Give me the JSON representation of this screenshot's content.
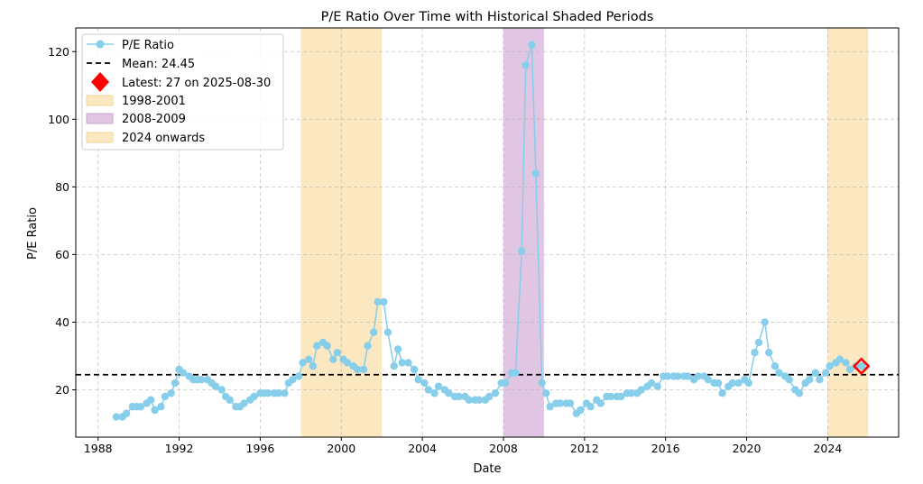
{
  "chart_data": {
    "type": "line",
    "title": "P/E Ratio Over Time with Historical Shaded Periods",
    "xlabel": "Date",
    "ylabel": "P/E Ratio",
    "xlim": [
      1986.9,
      2027.5
    ],
    "ylim": [
      6,
      127
    ],
    "x_ticks": [
      1988,
      1992,
      1996,
      2000,
      2004,
      2008,
      2012,
      2016,
      2020,
      2024
    ],
    "y_ticks": [
      20,
      40,
      60,
      80,
      100,
      120
    ],
    "grid": true,
    "legend_position": "top-left",
    "colors": {
      "line": "#87ceeb",
      "mean": "#000000",
      "latest": "#ff0000",
      "shade_1998": "#fce8c0",
      "shade_2008": "#e0c6e2",
      "shade_2024": "#fce8c0"
    },
    "series": [
      {
        "name": "P/E Ratio",
        "points": [
          [
            1988.9,
            12
          ],
          [
            1989.2,
            12
          ],
          [
            1989.4,
            13
          ],
          [
            1989.7,
            15
          ],
          [
            1989.9,
            15
          ],
          [
            1990.1,
            15
          ],
          [
            1990.4,
            16
          ],
          [
            1990.6,
            17
          ],
          [
            1990.8,
            14
          ],
          [
            1991.1,
            15
          ],
          [
            1991.3,
            18
          ],
          [
            1991.6,
            19
          ],
          [
            1991.8,
            22
          ],
          [
            1992.0,
            26
          ],
          [
            1992.2,
            25
          ],
          [
            1992.5,
            24
          ],
          [
            1992.7,
            23
          ],
          [
            1992.9,
            23
          ],
          [
            1993.1,
            23
          ],
          [
            1993.4,
            23
          ],
          [
            1993.6,
            22
          ],
          [
            1993.8,
            21
          ],
          [
            1994.1,
            20
          ],
          [
            1994.3,
            18
          ],
          [
            1994.5,
            17
          ],
          [
            1994.8,
            15
          ],
          [
            1995.0,
            15
          ],
          [
            1995.2,
            16
          ],
          [
            1995.5,
            17
          ],
          [
            1995.7,
            18
          ],
          [
            1996.0,
            19
          ],
          [
            1996.2,
            19
          ],
          [
            1996.4,
            19
          ],
          [
            1996.7,
            19
          ],
          [
            1996.9,
            19
          ],
          [
            1997.2,
            19
          ],
          [
            1997.4,
            22
          ],
          [
            1997.6,
            23
          ],
          [
            1997.9,
            24
          ],
          [
            1998.1,
            28
          ],
          [
            1998.4,
            29
          ],
          [
            1998.6,
            27
          ],
          [
            1998.8,
            33
          ],
          [
            1999.1,
            34
          ],
          [
            1999.3,
            33
          ],
          [
            1999.6,
            29
          ],
          [
            1999.8,
            31
          ],
          [
            2000.1,
            29
          ],
          [
            2000.3,
            28
          ],
          [
            2000.6,
            27
          ],
          [
            2000.8,
            26
          ],
          [
            2001.1,
            26
          ],
          [
            2001.3,
            33
          ],
          [
            2001.6,
            37
          ],
          [
            2001.8,
            46
          ],
          [
            2002.1,
            46
          ],
          [
            2002.3,
            37
          ],
          [
            2002.6,
            27
          ],
          [
            2002.8,
            32
          ],
          [
            2003.0,
            28
          ],
          [
            2003.3,
            28
          ],
          [
            2003.6,
            26
          ],
          [
            2003.8,
            23
          ],
          [
            2004.1,
            22
          ],
          [
            2004.3,
            20
          ],
          [
            2004.6,
            19
          ],
          [
            2004.8,
            21
          ],
          [
            2005.1,
            20
          ],
          [
            2005.3,
            19
          ],
          [
            2005.6,
            18
          ],
          [
            2005.8,
            18
          ],
          [
            2006.1,
            18
          ],
          [
            2006.3,
            17
          ],
          [
            2006.6,
            17
          ],
          [
            2006.8,
            17
          ],
          [
            2007.1,
            17
          ],
          [
            2007.3,
            18
          ],
          [
            2007.6,
            19
          ],
          [
            2007.9,
            22
          ],
          [
            2008.1,
            22
          ],
          [
            2008.4,
            25
          ],
          [
            2008.6,
            25
          ],
          [
            2008.9,
            61
          ],
          [
            2009.1,
            116
          ],
          [
            2009.4,
            122
          ],
          [
            2009.6,
            84
          ],
          [
            2009.9,
            22
          ],
          [
            2010.1,
            19
          ],
          [
            2010.3,
            15
          ],
          [
            2010.6,
            16
          ],
          [
            2010.8,
            16
          ],
          [
            2011.1,
            16
          ],
          [
            2011.3,
            16
          ],
          [
            2011.6,
            13
          ],
          [
            2011.8,
            14
          ],
          [
            2012.1,
            16
          ],
          [
            2012.3,
            15
          ],
          [
            2012.6,
            17
          ],
          [
            2012.8,
            16
          ],
          [
            2013.1,
            18
          ],
          [
            2013.3,
            18
          ],
          [
            2013.6,
            18
          ],
          [
            2013.8,
            18
          ],
          [
            2014.1,
            19
          ],
          [
            2014.3,
            19
          ],
          [
            2014.6,
            19
          ],
          [
            2014.8,
            20
          ],
          [
            2015.1,
            21
          ],
          [
            2015.3,
            22
          ],
          [
            2015.6,
            21
          ],
          [
            2015.9,
            24
          ],
          [
            2016.1,
            24
          ],
          [
            2016.4,
            24
          ],
          [
            2016.6,
            24
          ],
          [
            2016.9,
            24
          ],
          [
            2017.1,
            24
          ],
          [
            2017.4,
            23
          ],
          [
            2017.6,
            24
          ],
          [
            2017.9,
            24
          ],
          [
            2018.1,
            23
          ],
          [
            2018.4,
            22
          ],
          [
            2018.6,
            22
          ],
          [
            2018.8,
            19
          ],
          [
            2019.1,
            21
          ],
          [
            2019.3,
            22
          ],
          [
            2019.6,
            22
          ],
          [
            2019.9,
            23
          ],
          [
            2020.1,
            22
          ],
          [
            2020.4,
            31
          ],
          [
            2020.6,
            34
          ],
          [
            2020.9,
            40
          ],
          [
            2021.1,
            31
          ],
          [
            2021.4,
            27
          ],
          [
            2021.6,
            25
          ],
          [
            2021.9,
            24
          ],
          [
            2022.1,
            23
          ],
          [
            2022.4,
            20
          ],
          [
            2022.6,
            19
          ],
          [
            2022.9,
            22
          ],
          [
            2023.1,
            23
          ],
          [
            2023.4,
            25
          ],
          [
            2023.6,
            23
          ],
          [
            2023.9,
            25
          ],
          [
            2024.1,
            27
          ],
          [
            2024.4,
            28
          ],
          [
            2024.6,
            29
          ],
          [
            2024.9,
            28
          ],
          [
            2025.1,
            26
          ],
          [
            2025.4,
            27
          ],
          [
            2025.7,
            27
          ]
        ]
      }
    ],
    "mean_line": {
      "label": "Mean: 24.45",
      "value": 24.45
    },
    "latest_marker": {
      "label": "Latest: 27 on 2025-08-30",
      "x": 2025.66,
      "y": 27
    },
    "shaded_periods": [
      {
        "label": "1998-2001",
        "start": 1998.0,
        "end": 2002.0,
        "color_key": "shade_1998"
      },
      {
        "label": "2008-2009",
        "start": 2008.0,
        "end": 2010.0,
        "color_key": "shade_2008"
      },
      {
        "label": "2024 onwards",
        "start": 2024.0,
        "end": 2026.0,
        "color_key": "shade_2024"
      }
    ]
  }
}
